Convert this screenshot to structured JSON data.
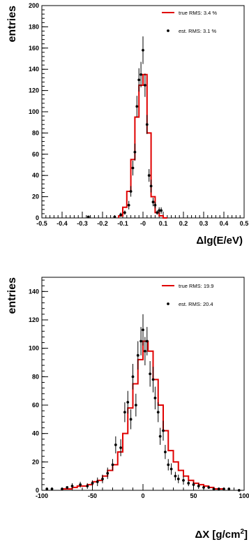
{
  "chart_data": [
    {
      "type": "histogram",
      "xlabel": "Δlg(E/eV)",
      "ylabel": "entries",
      "xlim": [
        -0.5,
        0.5
      ],
      "ylim": [
        0,
        200
      ],
      "xticks": [
        "-0.5",
        "-0.4",
        "-0.3",
        "-0.2",
        "-0.1",
        "-0",
        "0.1",
        "0.2",
        "0.3",
        "0.4",
        "0.5"
      ],
      "yticks": [
        "0",
        "20",
        "40",
        "60",
        "80",
        "100",
        "120",
        "140",
        "160",
        "180",
        "200"
      ],
      "legend": [
        {
          "label": "true RMS: 3.4 %",
          "color": "#e00000",
          "marker": "line"
        },
        {
          "label": "est. RMS: 3.1 %",
          "color": "#000000",
          "marker": "point"
        }
      ],
      "legend_position": "top-right",
      "series": [
        {
          "name": "true RMS: 3.4 %",
          "style": "step",
          "color": "#e00000",
          "bin_edges": [
            -0.12,
            -0.1,
            -0.08,
            -0.06,
            -0.04,
            -0.02,
            0.0,
            0.02,
            0.04,
            0.06,
            0.08,
            0.1,
            0.12
          ],
          "values": [
            2,
            10,
            25,
            55,
            95,
            125,
            135,
            80,
            20,
            5,
            2,
            0
          ]
        },
        {
          "name": "est. RMS: 3.1 %",
          "style": "points",
          "color": "#000000",
          "x": [
            -0.27,
            -0.14,
            -0.11,
            -0.09,
            -0.07,
            -0.06,
            -0.05,
            -0.04,
            -0.03,
            -0.02,
            -0.01,
            0.0,
            0.01,
            0.02,
            0.03,
            0.04,
            0.05,
            0.06,
            0.07,
            0.08,
            0.09
          ],
          "y": [
            1,
            1,
            3,
            5,
            12,
            25,
            47,
            62,
            105,
            130,
            135,
            158,
            125,
            88,
            40,
            30,
            15,
            12,
            5,
            7,
            7
          ],
          "err": [
            1,
            1,
            2,
            2,
            4,
            5,
            7,
            8,
            10,
            11,
            12,
            13,
            11,
            9,
            6,
            6,
            4,
            3,
            2,
            3,
            3
          ]
        }
      ]
    },
    {
      "type": "histogram",
      "xlabel": "ΔX [g/cm²]",
      "ylabel": "entries",
      "xlim": [
        -100,
        100
      ],
      "ylim": [
        0,
        150
      ],
      "xticks": [
        "-100",
        "-50",
        "0",
        "50",
        "100"
      ],
      "yticks": [
        "0",
        "20",
        "40",
        "60",
        "80",
        "100",
        "120",
        "140"
      ],
      "legend": [
        {
          "label": "true RMS: 19.9",
          "color": "#e00000",
          "marker": "line"
        },
        {
          "label": "est. RMS: 20.4",
          "color": "#000000",
          "marker": "point"
        }
      ],
      "legend_position": "top-right",
      "series": [
        {
          "name": "true RMS: 19.9",
          "style": "step",
          "color": "#e00000",
          "bin_edges": [
            -80,
            -75,
            -70,
            -65,
            -60,
            -55,
            -50,
            -45,
            -40,
            -35,
            -30,
            -25,
            -20,
            -15,
            -10,
            -5,
            0,
            5,
            10,
            15,
            20,
            25,
            30,
            35,
            40,
            45,
            50,
            55,
            60,
            65,
            70,
            75,
            80
          ],
          "values": [
            1,
            1,
            2,
            3,
            3,
            4,
            6,
            7,
            10,
            14,
            18,
            27,
            40,
            58,
            75,
            92,
            105,
            98,
            78,
            60,
            42,
            28,
            20,
            14,
            10,
            7,
            5,
            4,
            3,
            2,
            1,
            1
          ]
        },
        {
          "name": "est. RMS: 20.4",
          "style": "points",
          "color": "#000000",
          "x": [
            -95,
            -90,
            -80,
            -75,
            -70,
            -62,
            -55,
            -50,
            -45,
            -40,
            -35,
            -30,
            -27,
            -22,
            -18,
            -15,
            -12,
            -10,
            -7,
            -5,
            -2,
            0,
            2,
            4,
            7,
            10,
            12,
            15,
            17,
            20,
            22,
            25,
            28,
            32,
            35,
            40,
            45,
            50,
            55,
            60,
            65,
            70,
            75,
            80,
            85,
            95
          ],
          "y": [
            1,
            1,
            1,
            2,
            3,
            4,
            3,
            5,
            6,
            8,
            12,
            18,
            32,
            30,
            55,
            62,
            50,
            80,
            60,
            95,
            105,
            113,
            98,
            105,
            82,
            78,
            65,
            55,
            38,
            42,
            27,
            18,
            15,
            10,
            8,
            7,
            5,
            4,
            3,
            2,
            2,
            1,
            1,
            1,
            1,
            0
          ],
          "err": [
            1,
            1,
            1,
            1,
            2,
            2,
            2,
            2,
            3,
            3,
            4,
            4,
            6,
            6,
            7,
            8,
            7,
            9,
            8,
            10,
            10,
            11,
            10,
            10,
            9,
            9,
            8,
            7,
            6,
            7,
            5,
            4,
            4,
            3,
            3,
            3,
            2,
            2,
            2,
            1,
            1,
            1,
            1,
            1,
            1,
            0
          ]
        }
      ]
    }
  ]
}
